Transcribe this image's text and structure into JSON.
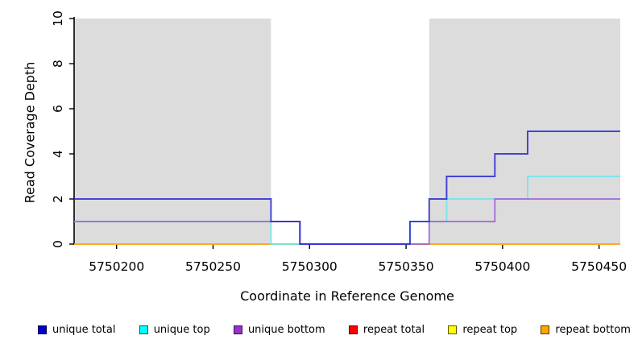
{
  "page": {
    "background": "#FFFFFF"
  },
  "chart_data": {
    "type": "line",
    "subtype": "step-coverage",
    "title": "",
    "xlabel": "Coordinate in Reference Genome",
    "ylabel": "Read Coverage Depth",
    "xlim": [
      5750178,
      5750461
    ],
    "ylim": [
      0,
      10
    ],
    "xticks": [
      5750200,
      5750250,
      5750300,
      5750350,
      5750400,
      5750450
    ],
    "yticks": [
      0,
      2,
      4,
      6,
      8,
      10
    ],
    "grid": false,
    "plot_bg": "#FFFFFF",
    "shade_color": "#DCDCDC",
    "shaded_regions": [
      {
        "x0": 5750178,
        "x1": 5750280
      },
      {
        "x0": 5750362,
        "x1": 5750461
      }
    ],
    "series": [
      {
        "name": "repeat total",
        "line_color": "#E81818",
        "points": [
          [
            5750178,
            0
          ],
          [
            5750461,
            0
          ]
        ]
      },
      {
        "name": "repeat top",
        "line_color": "#F5F500",
        "points": [
          [
            5750178,
            0
          ],
          [
            5750461,
            0
          ]
        ]
      },
      {
        "name": "repeat bottom",
        "line_color": "#FFA226",
        "points": [
          [
            5750178,
            0
          ],
          [
            5750461,
            0
          ]
        ]
      },
      {
        "name": "unique top",
        "line_color": "#6CE6EA",
        "points": [
          [
            5750178,
            1
          ],
          [
            5750280,
            1
          ],
          [
            5750280,
            0
          ],
          [
            5750352,
            0
          ],
          [
            5750352,
            1
          ],
          [
            5750371,
            1
          ],
          [
            5750371,
            2
          ],
          [
            5750413,
            2
          ],
          [
            5750413,
            3
          ],
          [
            5750461,
            3
          ]
        ]
      },
      {
        "name": "unique bottom",
        "line_color": "#9E64D6",
        "points": [
          [
            5750178,
            1
          ],
          [
            5750295,
            1
          ],
          [
            5750295,
            0
          ],
          [
            5750362,
            0
          ],
          [
            5750362,
            1
          ],
          [
            5750396,
            1
          ],
          [
            5750396,
            2
          ],
          [
            5750461,
            2
          ]
        ]
      },
      {
        "name": "unique total",
        "line_color": "#2A2AD2",
        "points": [
          [
            5750178,
            2
          ],
          [
            5750280,
            2
          ],
          [
            5750280,
            1
          ],
          [
            5750295,
            1
          ],
          [
            5750295,
            0
          ],
          [
            5750352,
            0
          ],
          [
            5750352,
            1
          ],
          [
            5750362,
            1
          ],
          [
            5750362,
            2
          ],
          [
            5750371,
            2
          ],
          [
            5750371,
            3
          ],
          [
            5750396,
            3
          ],
          [
            5750396,
            4
          ],
          [
            5750413,
            4
          ],
          [
            5750413,
            5
          ],
          [
            5750461,
            5
          ]
        ]
      }
    ],
    "legend": {
      "position": "bottom",
      "items": [
        {
          "label": "unique total",
          "color": "#0000CD"
        },
        {
          "label": "unique top",
          "color": "#00FFFF"
        },
        {
          "label": "unique bottom",
          "color": "#9932CC"
        },
        {
          "label": "repeat total",
          "color": "#FF0000"
        },
        {
          "label": "repeat top",
          "color": "#FFFF00"
        },
        {
          "label": "repeat bottom",
          "color": "#FFA500"
        }
      ]
    }
  }
}
